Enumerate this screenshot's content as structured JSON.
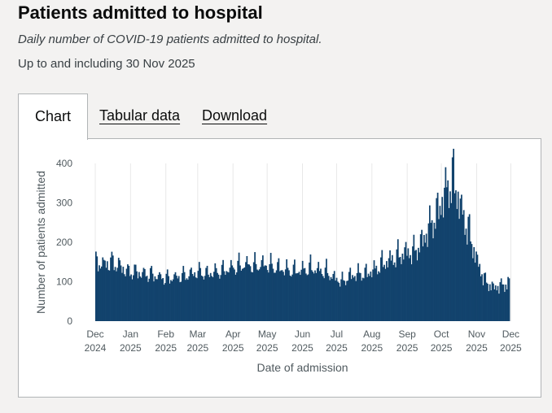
{
  "page": {
    "title": "Patients admitted to hospital",
    "subtitle": "Daily number of COVID-19 patients admitted to hospital.",
    "updated": "Up to and including 30 Nov 2025"
  },
  "tabs": [
    {
      "label": "Chart",
      "active": true
    },
    {
      "label": "Tabular data",
      "active": false
    },
    {
      "label": "Download",
      "active": false
    }
  ],
  "colors": {
    "bar": "#12436d",
    "grid": "#e8e8e8",
    "axis_text": "#505a5f"
  },
  "chart_data": {
    "type": "bar",
    "title": "",
    "xlabel": "Date of admission",
    "ylabel": "Number of patients admitted",
    "ylim": [
      0,
      400
    ],
    "y_ticks": [
      0,
      100,
      200,
      300,
      400
    ],
    "x_ticks": [
      {
        "month": "Dec",
        "year": "2024"
      },
      {
        "month": "Jan",
        "year": "2025"
      },
      {
        "month": "Feb",
        "year": "2025"
      },
      {
        "month": "Mar",
        "year": "2025"
      },
      {
        "month": "Apr",
        "year": "2025"
      },
      {
        "month": "May",
        "year": "2025"
      },
      {
        "month": "Jun",
        "year": "2025"
      },
      {
        "month": "Jul",
        "year": "2025"
      },
      {
        "month": "Aug",
        "year": "2025"
      },
      {
        "month": "Sep",
        "year": "2025"
      },
      {
        "month": "Oct",
        "year": "2025"
      },
      {
        "month": "Nov",
        "year": "2025"
      },
      {
        "month": "Dec",
        "year": "2025"
      }
    ],
    "grid": true,
    "legend": "none",
    "x_start": "2024-12-01",
    "x_end": "2025-11-30",
    "weekly_average": [
      {
        "week": "2024-12-01",
        "value": 150
      },
      {
        "week": "2024-12-08",
        "value": 145
      },
      {
        "week": "2024-12-15",
        "value": 150
      },
      {
        "week": "2024-12-22",
        "value": 140
      },
      {
        "week": "2024-12-29",
        "value": 125
      },
      {
        "week": "2025-01-05",
        "value": 125
      },
      {
        "week": "2025-01-12",
        "value": 120
      },
      {
        "week": "2025-01-19",
        "value": 118
      },
      {
        "week": "2025-01-26",
        "value": 112
      },
      {
        "week": "2025-02-02",
        "value": 108
      },
      {
        "week": "2025-02-09",
        "value": 112
      },
      {
        "week": "2025-02-16",
        "value": 115
      },
      {
        "week": "2025-02-23",
        "value": 120
      },
      {
        "week": "2025-03-02",
        "value": 125
      },
      {
        "week": "2025-03-09",
        "value": 120
      },
      {
        "week": "2025-03-16",
        "value": 125
      },
      {
        "week": "2025-03-23",
        "value": 128
      },
      {
        "week": "2025-03-30",
        "value": 135
      },
      {
        "week": "2025-04-06",
        "value": 140
      },
      {
        "week": "2025-04-13",
        "value": 145
      },
      {
        "week": "2025-04-20",
        "value": 140
      },
      {
        "week": "2025-04-27",
        "value": 145
      },
      {
        "week": "2025-05-04",
        "value": 140
      },
      {
        "week": "2025-05-11",
        "value": 135
      },
      {
        "week": "2025-05-18",
        "value": 130
      },
      {
        "week": "2025-05-25",
        "value": 128
      },
      {
        "week": "2025-06-01",
        "value": 130
      },
      {
        "week": "2025-06-08",
        "value": 135
      },
      {
        "week": "2025-06-15",
        "value": 130
      },
      {
        "week": "2025-06-22",
        "value": 125
      },
      {
        "week": "2025-06-29",
        "value": 110
      },
      {
        "week": "2025-07-06",
        "value": 100
      },
      {
        "week": "2025-07-13",
        "value": 115
      },
      {
        "week": "2025-07-20",
        "value": 120
      },
      {
        "week": "2025-07-27",
        "value": 120
      },
      {
        "week": "2025-08-03",
        "value": 130
      },
      {
        "week": "2025-08-10",
        "value": 145
      },
      {
        "week": "2025-08-17",
        "value": 155
      },
      {
        "week": "2025-08-24",
        "value": 165
      },
      {
        "week": "2025-08-31",
        "value": 175
      },
      {
        "week": "2025-09-07",
        "value": 175
      },
      {
        "week": "2025-09-14",
        "value": 200
      },
      {
        "week": "2025-09-21",
        "value": 240
      },
      {
        "week": "2025-09-28",
        "value": 275
      },
      {
        "week": "2025-10-05",
        "value": 330
      },
      {
        "week": "2025-10-12",
        "value": 360
      },
      {
        "week": "2025-10-19",
        "value": 280
      },
      {
        "week": "2025-10-26",
        "value": 220
      },
      {
        "week": "2025-11-02",
        "value": 150
      },
      {
        "week": "2025-11-09",
        "value": 100
      },
      {
        "week": "2025-11-16",
        "value": 85
      },
      {
        "week": "2025-11-23",
        "value": 90
      },
      {
        "week": "2025-11-30",
        "value": 95
      }
    ]
  }
}
